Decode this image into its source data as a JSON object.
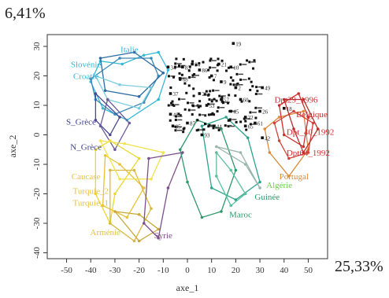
{
  "variance": {
    "y_axis_pct": "6,41%",
    "x_axis_pct": "25,33%"
  },
  "chart_data": {
    "type": "scatter",
    "xlabel": "axe_1",
    "ylabel": "axe_2",
    "xlim": [
      -58,
      58
    ],
    "ylim": [
      -42,
      34
    ],
    "xticks": [
      -50,
      -40,
      -30,
      -20,
      -10,
      0,
      10,
      20,
      30,
      40,
      50
    ],
    "yticks": [
      -40,
      -30,
      -20,
      -10,
      0,
      10,
      20,
      30
    ],
    "grid": false,
    "legend": "none",
    "group_labels": [
      {
        "text": "Italie",
        "x": -24,
        "y": 28,
        "color": "#35b8d8",
        "anchor": "middle"
      },
      {
        "text": "Slovénie",
        "x": -42,
        "y": 23,
        "color": "#35b8d8",
        "anchor": "middle"
      },
      {
        "text": "Croatie",
        "x": -42,
        "y": 19,
        "color": "#35b8d8",
        "anchor": "middle"
      },
      {
        "text": "S_Grèce",
        "x": -44,
        "y": 3.5,
        "color": "#3f3f8f",
        "anchor": "middle"
      },
      {
        "text": "N_Grèce",
        "x": -42,
        "y": -5,
        "color": "#3f3f8f",
        "anchor": "middle"
      },
      {
        "text": "Caucase",
        "x": -42,
        "y": -15,
        "color": "#e8c23a",
        "anchor": "middle"
      },
      {
        "text": "Turquie_2",
        "x": -40,
        "y": -20,
        "color": "#e8c23a",
        "anchor": "middle"
      },
      {
        "text": "Turquie_1",
        "x": -40,
        "y": -24,
        "color": "#e8c23a",
        "anchor": "middle"
      },
      {
        "text": "Arménie",
        "x": -34,
        "y": -34,
        "color": "#e8c23a",
        "anchor": "middle"
      },
      {
        "text": "Syrie",
        "x": -10,
        "y": -35,
        "color": "#7d4f8c",
        "anchor": "middle"
      },
      {
        "text": "Maroc",
        "x": 22,
        "y": -28,
        "color": "#2e9a6c",
        "anchor": "middle"
      },
      {
        "text": "Guinée",
        "x": 33,
        "y": -22,
        "color": "#2e9a6c",
        "anchor": "middle"
      },
      {
        "text": "Algérie",
        "x": 38,
        "y": -18,
        "color": "#6ccf48",
        "anchor": "middle"
      },
      {
        "text": "Portugal",
        "x": 38,
        "y": -15,
        "color": "#d98a3a",
        "anchor": "start"
      },
      {
        "text": "Dpt29_1996",
        "x": 36,
        "y": 11,
        "color": "#cc2e2e",
        "anchor": "start"
      },
      {
        "text": "Belgique",
        "x": 45,
        "y": 6,
        "color": "#cc2e2e",
        "anchor": "start"
      },
      {
        "text": "Dpt_40_1992",
        "x": 41,
        "y": 0,
        "color": "#cc2e2e",
        "anchor": "start"
      },
      {
        "text": "Dpt64_1992",
        "x": 41,
        "y": -7,
        "color": "#cc2e2e",
        "anchor": "start"
      }
    ],
    "group_hulls": [
      {
        "color": "#35b8d8",
        "points": [
          [
            -40,
            18
          ],
          [
            -36,
            25
          ],
          [
            -27,
            24
          ],
          [
            -18,
            27
          ],
          [
            -12,
            28
          ],
          [
            -8,
            22
          ],
          [
            -12,
            12
          ],
          [
            -25,
            5
          ],
          [
            -35,
            9
          ]
        ]
      },
      {
        "color": "#3a8ab8",
        "points": [
          [
            -40,
            19
          ],
          [
            -28,
            26
          ],
          [
            -15,
            26
          ],
          [
            -12,
            20
          ],
          [
            -18,
            11
          ],
          [
            -30,
            7
          ],
          [
            -38,
            12
          ]
        ]
      },
      {
        "color": "#2b6aa0",
        "points": [
          [
            -36,
            26
          ],
          [
            -22,
            28
          ],
          [
            -10,
            21
          ],
          [
            -20,
            13
          ],
          [
            -34,
            15
          ]
        ]
      },
      {
        "color": "#7acde0",
        "points": [
          [
            -38,
            20
          ],
          [
            -28,
            17
          ],
          [
            -15,
            16
          ],
          [
            -20,
            9
          ],
          [
            -33,
            12
          ]
        ]
      },
      {
        "color": "#4a4a90",
        "points": [
          [
            -38,
            14
          ],
          [
            -28,
            6
          ],
          [
            -32,
            0
          ],
          [
            -38,
            5
          ]
        ]
      },
      {
        "color": "#6a5a98",
        "points": [
          [
            -33,
            12
          ],
          [
            -24,
            4
          ],
          [
            -30,
            -5
          ],
          [
            -36,
            3
          ]
        ]
      },
      {
        "color": "#e8d830",
        "points": [
          [
            -38,
            -5
          ],
          [
            -32,
            -2
          ],
          [
            -20,
            -8
          ],
          [
            -30,
            -20
          ],
          [
            -32,
            -30
          ],
          [
            -38,
            -20
          ]
        ]
      },
      {
        "color": "#e8c23a",
        "points": [
          [
            -34,
            -7
          ],
          [
            -28,
            -10
          ],
          [
            -18,
            -18
          ],
          [
            -25,
            -28
          ],
          [
            -35,
            -24
          ]
        ]
      },
      {
        "color": "#d8b840",
        "points": [
          [
            -32,
            -12
          ],
          [
            -22,
            -12
          ],
          [
            -15,
            -25
          ],
          [
            -22,
            -36
          ],
          [
            -32,
            -30
          ]
        ]
      },
      {
        "color": "#f2e24a",
        "points": [
          [
            -36,
            -2
          ],
          [
            -26,
            -3
          ],
          [
            -10,
            -6
          ],
          [
            -15,
            -15
          ],
          [
            -28,
            -15
          ]
        ]
      },
      {
        "color": "#c8a838",
        "points": [
          [
            -30,
            -26
          ],
          [
            -20,
            -27
          ],
          [
            -12,
            -32
          ],
          [
            -20,
            -36
          ]
        ]
      },
      {
        "color": "#7d4f8c",
        "points": [
          [
            -16,
            -8
          ],
          [
            -2,
            -6
          ],
          [
            -8,
            -18
          ],
          [
            -12,
            -35
          ],
          [
            -18,
            -30
          ]
        ]
      },
      {
        "color": "#2e9a6c",
        "points": [
          [
            -3,
            -5
          ],
          [
            4,
            5
          ],
          [
            14,
            2
          ],
          [
            20,
            -12
          ],
          [
            14,
            -26
          ],
          [
            6,
            -28
          ],
          [
            0,
            -16
          ]
        ]
      },
      {
        "color": "#2ca38c",
        "points": [
          [
            6,
            3
          ],
          [
            16,
            6
          ],
          [
            25,
            -1
          ],
          [
            30,
            -16
          ],
          [
            20,
            -22
          ],
          [
            10,
            -18
          ]
        ]
      },
      {
        "color": "#5bbf9e",
        "points": [
          [
            12,
            -6
          ],
          [
            18,
            -12
          ],
          [
            24,
            -20
          ],
          [
            18,
            -24
          ],
          [
            12,
            -14
          ]
        ]
      },
      {
        "color": "#9ab5aa",
        "points": [
          [
            12,
            -4
          ],
          [
            22,
            -6
          ],
          [
            30,
            -18
          ],
          [
            24,
            -10
          ]
        ]
      },
      {
        "color": "#d98a3a",
        "points": [
          [
            32,
            2
          ],
          [
            38,
            6
          ],
          [
            48,
            8
          ],
          [
            50,
            -5
          ],
          [
            42,
            -14
          ],
          [
            34,
            -6
          ]
        ]
      },
      {
        "color": "#cc2e2e",
        "points": [
          [
            38,
            10
          ],
          [
            46,
            14
          ],
          [
            50,
            6
          ],
          [
            48,
            -4
          ],
          [
            40,
            0
          ]
        ]
      },
      {
        "color": "#d4403a",
        "points": [
          [
            36,
            4
          ],
          [
            44,
            8
          ],
          [
            52,
            4
          ],
          [
            50,
            -6
          ],
          [
            42,
            -8
          ],
          [
            38,
            -2
          ]
        ]
      },
      {
        "color": "#b8302e",
        "points": [
          [
            40,
            12
          ],
          [
            48,
            12
          ],
          [
            54,
            2
          ],
          [
            48,
            -6
          ],
          [
            44,
            2
          ]
        ]
      }
    ],
    "black_labeled_points": [
      {
        "id": "19",
        "x": 19,
        "y": 31
      },
      {
        "id": "49",
        "x": 31,
        "y": 16
      },
      {
        "id": "18",
        "x": 40,
        "y": 9
      },
      {
        "id": "26",
        "x": 30,
        "y": 8
      },
      {
        "id": "42",
        "x": 31,
        "y": -1
      },
      {
        "id": "83",
        "x": -2,
        "y": 23
      },
      {
        "id": "84",
        "x": 2,
        "y": 24
      },
      {
        "id": "86",
        "x": 5,
        "y": 22
      },
      {
        "id": "21",
        "x": 13,
        "y": 24
      },
      {
        "id": "10",
        "x": 18,
        "y": 23
      },
      {
        "id": "34",
        "x": -8,
        "y": 23
      },
      {
        "id": "68",
        "x": -3,
        "y": 19
      },
      {
        "id": "37",
        "x": -7,
        "y": 14
      },
      {
        "id": "48",
        "x": -7,
        "y": 7
      },
      {
        "id": "85",
        "x": -6,
        "y": 3
      },
      {
        "id": "87",
        "x": 0,
        "y": 4
      },
      {
        "id": "93",
        "x": 6,
        "y": 0
      },
      {
        "id": "44",
        "x": 11,
        "y": 3
      },
      {
        "id": "25",
        "x": 5,
        "y": 14
      },
      {
        "id": "53",
        "x": 8,
        "y": 10
      },
      {
        "id": "57",
        "x": 14,
        "y": 12
      },
      {
        "id": "60",
        "x": 22,
        "y": 12
      },
      {
        "id": "45",
        "x": 18,
        "y": 8
      },
      {
        "id": "22",
        "x": 24,
        "y": 6
      },
      {
        "id": "61",
        "x": 28,
        "y": 4
      },
      {
        "id": "9",
        "x": 14,
        "y": 18
      },
      {
        "id": "2",
        "x": 20,
        "y": 16
      },
      {
        "id": "7",
        "x": 10,
        "y": 20
      },
      {
        "id": "65",
        "x": 24,
        "y": 3
      }
    ],
    "black_cluster": {
      "x_range": [
        -8,
        30
      ],
      "y_range": [
        1,
        26
      ]
    }
  }
}
